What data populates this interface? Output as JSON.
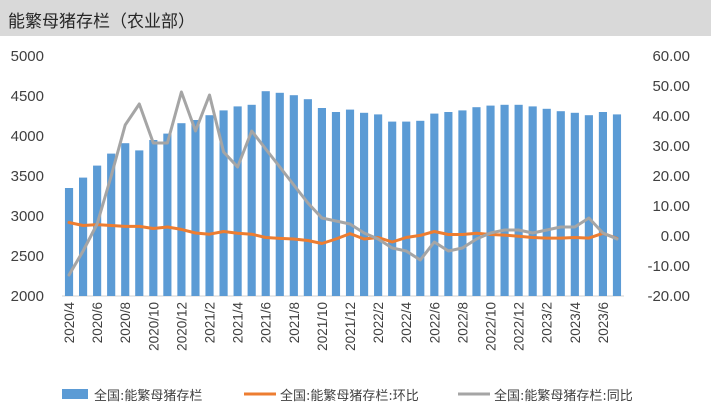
{
  "title": "能繁母猪存栏（农业部）",
  "chart_data": {
    "type": "bar+line",
    "title": "能繁母猪存栏（农业部）",
    "x": [
      "2020/4",
      "2020/5",
      "2020/6",
      "2020/7",
      "2020/8",
      "2020/9",
      "2020/10",
      "2020/11",
      "2020/12",
      "2021/1",
      "2021/2",
      "2021/3",
      "2021/4",
      "2021/5",
      "2021/6",
      "2021/7",
      "2021/8",
      "2021/9",
      "2021/10",
      "2021/11",
      "2021/12",
      "2022/1",
      "2022/2",
      "2022/3",
      "2022/4",
      "2022/5",
      "2022/6",
      "2022/7",
      "2022/8",
      "2022/9",
      "2022/10",
      "2022/11",
      "2022/12",
      "2023/1",
      "2023/2",
      "2023/3",
      "2023/4",
      "2023/5",
      "2023/6",
      "2023/7"
    ],
    "x_tick_labels": [
      "2020/4",
      "2020/6",
      "2020/8",
      "2020/10",
      "2020/12",
      "2021/2",
      "2021/4",
      "2021/6",
      "2021/8",
      "2021/10",
      "2021/12",
      "2022/2",
      "2022/4",
      "2022/6",
      "2022/8",
      "2022/10",
      "2022/12",
      "2023/2",
      "2023/4",
      "2023/6"
    ],
    "y_left": {
      "min": 2000,
      "max": 5000,
      "ticks": [
        "2000",
        "2500",
        "3000",
        "3500",
        "4000",
        "4500",
        "5000"
      ]
    },
    "y_right": {
      "min": -20,
      "max": 60,
      "ticks": [
        "-20.00",
        "-10.00",
        "0.00",
        "10.00",
        "20.00",
        "30.00",
        "40.00",
        "50.00",
        "60.00"
      ]
    },
    "series": [
      {
        "name": "全国:能繁母猪存栏",
        "kind": "bar",
        "axis": "left",
        "color": "#5b9bd5",
        "values": [
          3350,
          3480,
          3630,
          3780,
          3910,
          3820,
          3950,
          4030,
          4160,
          4200,
          4260,
          4320,
          4370,
          4390,
          4560,
          4540,
          4510,
          4460,
          4350,
          4300,
          4330,
          4290,
          4270,
          4180,
          4180,
          4190,
          4280,
          4300,
          4320,
          4360,
          4380,
          4390,
          4390,
          4370,
          4340,
          4310,
          4290,
          4260,
          4300,
          4270
        ]
      },
      {
        "name": "全国:能繁母猪存栏:环比",
        "kind": "line",
        "axis": "right",
        "color": "#ed7d31",
        "values": [
          4.5,
          3.5,
          3.8,
          3.5,
          3.2,
          3.2,
          2.5,
          3.0,
          2.2,
          1.0,
          0.6,
          1.5,
          0.9,
          0.6,
          -0.5,
          -0.8,
          -1.0,
          -1.5,
          -2.5,
          -1.0,
          0.8,
          -1.0,
          -0.5,
          -2.0,
          -0.5,
          0.2,
          1.5,
          0.5,
          0.5,
          0.9,
          0.5,
          0.3,
          -0.1,
          -0.5,
          -0.7,
          -0.7,
          -0.5,
          -0.7,
          0.9,
          -0.8
        ]
      },
      {
        "name": "全国:能繁母猪存栏:同比",
        "kind": "line",
        "axis": "right",
        "color": "#a5a5a5",
        "values": [
          -13,
          -5,
          4,
          20,
          37,
          44,
          31,
          31,
          48,
          35,
          47,
          28,
          23,
          35,
          29,
          23,
          17,
          11,
          6,
          5,
          4,
          1,
          -1,
          -4,
          -5,
          -8,
          -2,
          -5,
          -4,
          -1,
          1,
          2,
          2,
          1,
          2,
          3,
          3,
          6,
          1,
          -1
        ]
      }
    ],
    "legend_position": "bottom"
  }
}
